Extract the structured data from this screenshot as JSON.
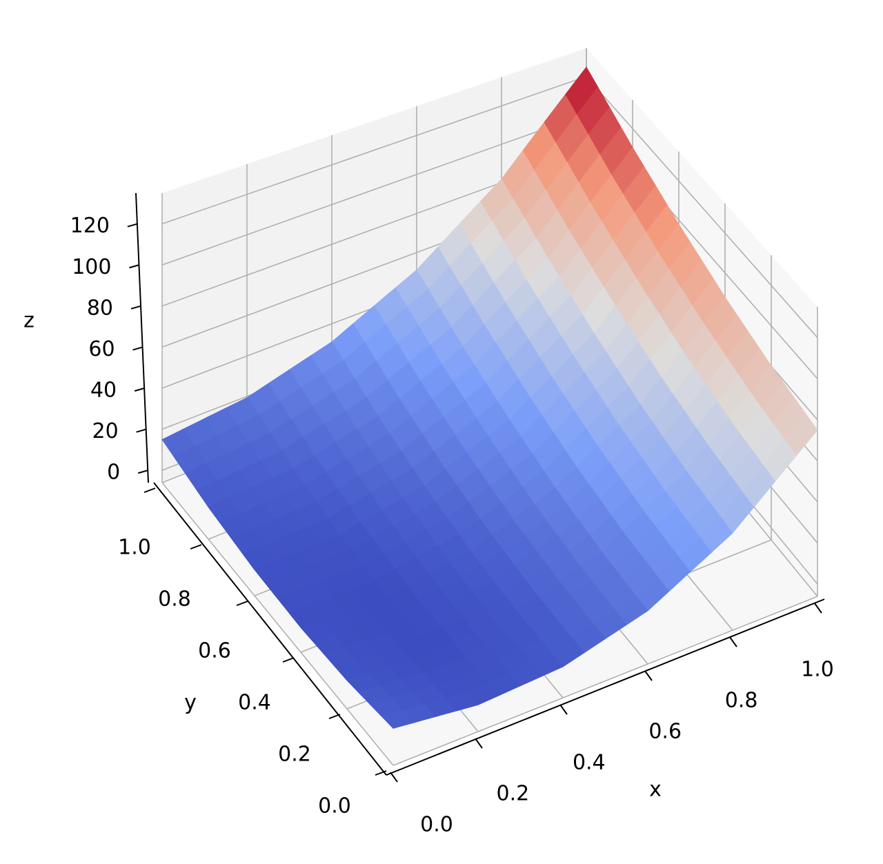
{
  "chart_data": {
    "type": "surface",
    "colormap": "coolwarm",
    "grid": true,
    "xlabel": "x",
    "ylabel": "y",
    "zlabel": "z",
    "x": [
      0,
      0.2,
      0.4,
      0.6,
      0.8,
      1.0
    ],
    "y": [
      0,
      0.2,
      0.4,
      0.6,
      0.8,
      1.0
    ],
    "z": [
      [
        12.0,
        7.0,
        9.1,
        19.9,
        41.3,
        75.0
      ],
      [
        7.8,
        4.7,
        8.7,
        21.4,
        44.6,
        80.2
      ],
      [
        6.0,
        4.8,
        10.6,
        25.2,
        50.4,
        87.8
      ],
      [
        6.6,
        7.3,
        15.0,
        31.5,
        58.5,
        97.8
      ],
      [
        9.6,
        12.2,
        21.7,
        40.1,
        69.0,
        110.2
      ],
      [
        15.0,
        19.4,
        30.9,
        51.1,
        81.9,
        125.0
      ]
    ],
    "xlim": [
      0,
      1
    ],
    "ylim": [
      0,
      1
    ],
    "zlim": [
      -6,
      135
    ],
    "xticks": [
      {
        "value": 0,
        "label": "0.0"
      },
      {
        "value": 0.2,
        "label": "0.2"
      },
      {
        "value": 0.4,
        "label": "0.4"
      },
      {
        "value": 0.6,
        "label": "0.6"
      },
      {
        "value": 0.8,
        "label": "0.8"
      },
      {
        "value": 1,
        "label": "1.0"
      }
    ],
    "yticks": [
      {
        "value": 0,
        "label": "0.0"
      },
      {
        "value": 0.2,
        "label": "0.2"
      },
      {
        "value": 0.4,
        "label": "0.4"
      },
      {
        "value": 0.6,
        "label": "0.6"
      },
      {
        "value": 0.8,
        "label": "0.8"
      },
      {
        "value": 1,
        "label": "1.0"
      }
    ],
    "zticks": [
      0,
      20,
      40,
      60,
      80,
      100,
      120
    ]
  }
}
